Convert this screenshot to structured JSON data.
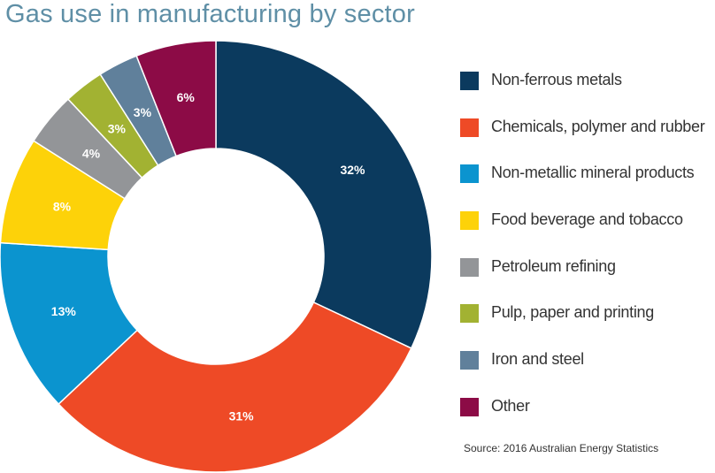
{
  "title": "Gas use in manufacturing by sector",
  "source": "Source: 2016 Australian Energy Statistics",
  "chart_data": {
    "type": "pie",
    "subtype": "donut",
    "title": "Gas use in manufacturing by sector",
    "legend": "right",
    "categories": [
      "Non-ferrous metals",
      "Chemicals, polymer and rubber",
      "Non-metallic mineral products",
      "Food beverage and tobacco",
      "Petroleum refining",
      "Pulp, paper and printing",
      "Iron and steel",
      "Other"
    ],
    "values": [
      32,
      31,
      13,
      8,
      4,
      3,
      3,
      6
    ],
    "labels": [
      "32%",
      "31%",
      "13%",
      "8%",
      "4%",
      "3%",
      "3%",
      "6%"
    ],
    "colors": [
      "#0b3a5e",
      "#ee4a26",
      "#0b94cf",
      "#fdd209",
      "#939598",
      "#a2b232",
      "#60809b",
      "#8c0b46"
    ]
  }
}
